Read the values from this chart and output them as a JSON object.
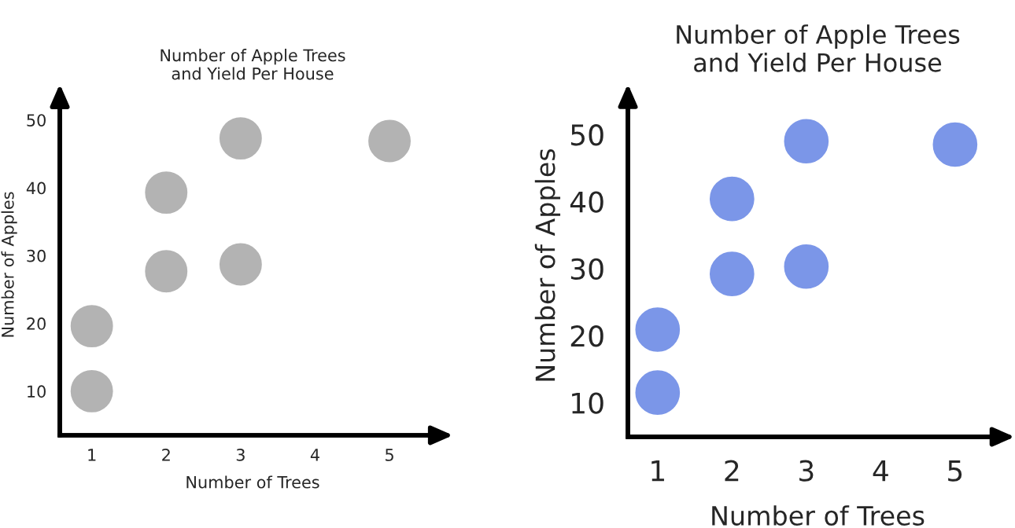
{
  "chart_data": [
    {
      "type": "scatter",
      "title": "Number of Apple Trees\nand Yield Per House",
      "xlabel": "Number of Trees",
      "ylabel": "Number of Apples",
      "x": [
        1,
        1,
        2,
        2,
        3,
        3,
        5
      ],
      "series": [
        {
          "color": "#b3b3b3",
          "values": [
            10,
            19.6,
            27.7,
            39.3,
            28.7,
            47.3,
            46.9
          ]
        }
      ],
      "xlim": [
        0.57,
        5.75
      ],
      "ylim": [
        3.5,
        53.8
      ],
      "xticks": [
        1,
        2,
        3,
        4,
        5
      ],
      "yticks": [
        10,
        20,
        30,
        40,
        50
      ],
      "grid": false,
      "legend": false,
      "marker": "circle"
    },
    {
      "type": "scatter",
      "title": "Number of Apple Trees\nand Yield Per House",
      "xlabel": "Number of Trees",
      "ylabel": "Number of Apples",
      "x": [
        1,
        1,
        2,
        2,
        3,
        3,
        5
      ],
      "series": [
        {
          "color": "#7b96e8",
          "values": [
            11.5,
            20.9,
            29.2,
            40.4,
            30.3,
            49,
            48.5
          ]
        }
      ],
      "xlim": [
        0.6,
        5.7
      ],
      "ylim": [
        4.9,
        56
      ],
      "xticks": [
        1,
        2,
        3,
        4,
        5
      ],
      "yticks": [
        10,
        20,
        30,
        40,
        50
      ],
      "grid": false,
      "legend": false,
      "marker": "circle"
    }
  ]
}
